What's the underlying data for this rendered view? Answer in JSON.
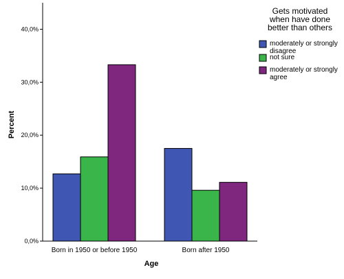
{
  "chart_data": {
    "type": "bar",
    "categories": [
      "Born in 1950 or before 1950",
      "Born after 1950"
    ],
    "series": [
      {
        "name": "moderately or strongly disagree",
        "color": "#3f57b3",
        "values": [
          12.7,
          17.5
        ]
      },
      {
        "name": "not sure",
        "color": "#3ab54a",
        "values": [
          15.9,
          9.6
        ]
      },
      {
        "name": "moderately or strongly agree",
        "color": "#7f277f",
        "values": [
          33.3,
          11.1
        ]
      }
    ],
    "xlabel": "Age",
    "ylabel": "Percent",
    "ylim": [
      0,
      45
    ],
    "yticks": [
      "0,0%",
      "10,0%",
      "20,0%",
      "30,0%",
      "40,0%"
    ],
    "ytick_values": [
      0,
      10,
      20,
      30,
      40
    ],
    "legend": {
      "title_lines": [
        "Gets motivated",
        "when have done",
        "better than others"
      ],
      "placement": "top-right",
      "entries": [
        [
          "moderately or strongly",
          "disagree"
        ],
        [
          "not sure"
        ],
        [
          "moderately or strongly",
          "agree"
        ]
      ]
    },
    "grid": false
  }
}
